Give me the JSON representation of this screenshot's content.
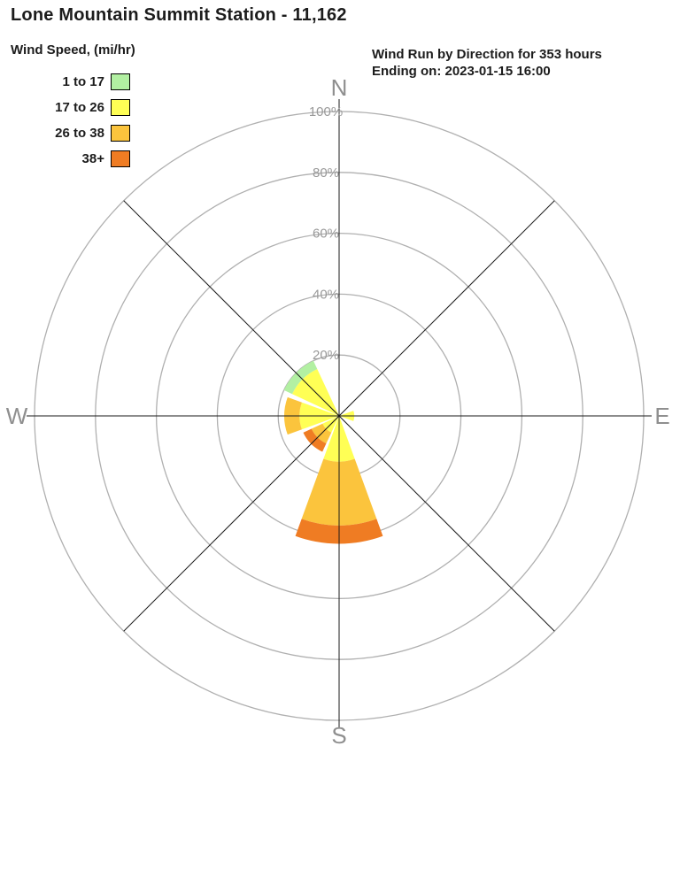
{
  "title": "Lone Mountain Summit Station - 11,162",
  "legend": {
    "title": "Wind Speed, (mi/hr)",
    "bins": [
      {
        "label": "1 to 17",
        "color": "#b2f0a2"
      },
      {
        "label": "17 to 26",
        "color": "#ffff55"
      },
      {
        "label": "26 to 38",
        "color": "#fbc43d"
      },
      {
        "label": "38+",
        "color": "#ef7c23"
      }
    ]
  },
  "annotation": {
    "line1": "Wind Run by Direction for 353 hours",
    "line2": "Ending on: 2023-01-15 16:00"
  },
  "chart_data": {
    "type": "wind-rose",
    "title": "Wind Run by Direction for 353 hours",
    "units": "percent of wind run",
    "duration_hours": 353,
    "ending_on": "2023-01-15 16:00",
    "rings": [
      {
        "value": 20,
        "label": "20%"
      },
      {
        "value": 40,
        "label": "40%"
      },
      {
        "value": 60,
        "label": "60%"
      },
      {
        "value": 80,
        "label": "80%"
      },
      {
        "value": 100,
        "label": "100%"
      }
    ],
    "max_ring": 100,
    "compass_labels": [
      {
        "label": "N",
        "angle_deg": 0
      },
      {
        "label": "E",
        "angle_deg": 90
      },
      {
        "label": "S",
        "angle_deg": 180
      },
      {
        "label": "W",
        "angle_deg": 270
      }
    ],
    "petal_width_deg": 40,
    "petals": [
      {
        "direction": "E",
        "angle_deg": 90,
        "segments": [
          {
            "bin": "17 to 26",
            "pct": 5
          }
        ]
      },
      {
        "direction": "S",
        "angle_deg": 180,
        "segments": [
          {
            "bin": "17 to 26",
            "pct": 15
          },
          {
            "bin": "26 to 38",
            "pct": 21
          },
          {
            "bin": "38+",
            "pct": 6
          }
        ]
      },
      {
        "direction": "SW",
        "angle_deg": 225,
        "segments": [
          {
            "bin": "17 to 26",
            "pct": 6
          },
          {
            "bin": "26 to 38",
            "pct": 4
          },
          {
            "bin": "38+",
            "pct": 3
          }
        ]
      },
      {
        "direction": "W",
        "angle_deg": 270,
        "segments": [
          {
            "bin": "17 to 26",
            "pct": 13
          },
          {
            "bin": "26 to 38",
            "pct": 5
          }
        ]
      },
      {
        "direction": "NW",
        "angle_deg": 315,
        "segments": [
          {
            "bin": "17 to 26",
            "pct": 17
          },
          {
            "bin": "1 to 17",
            "pct": 3
          }
        ]
      }
    ]
  }
}
